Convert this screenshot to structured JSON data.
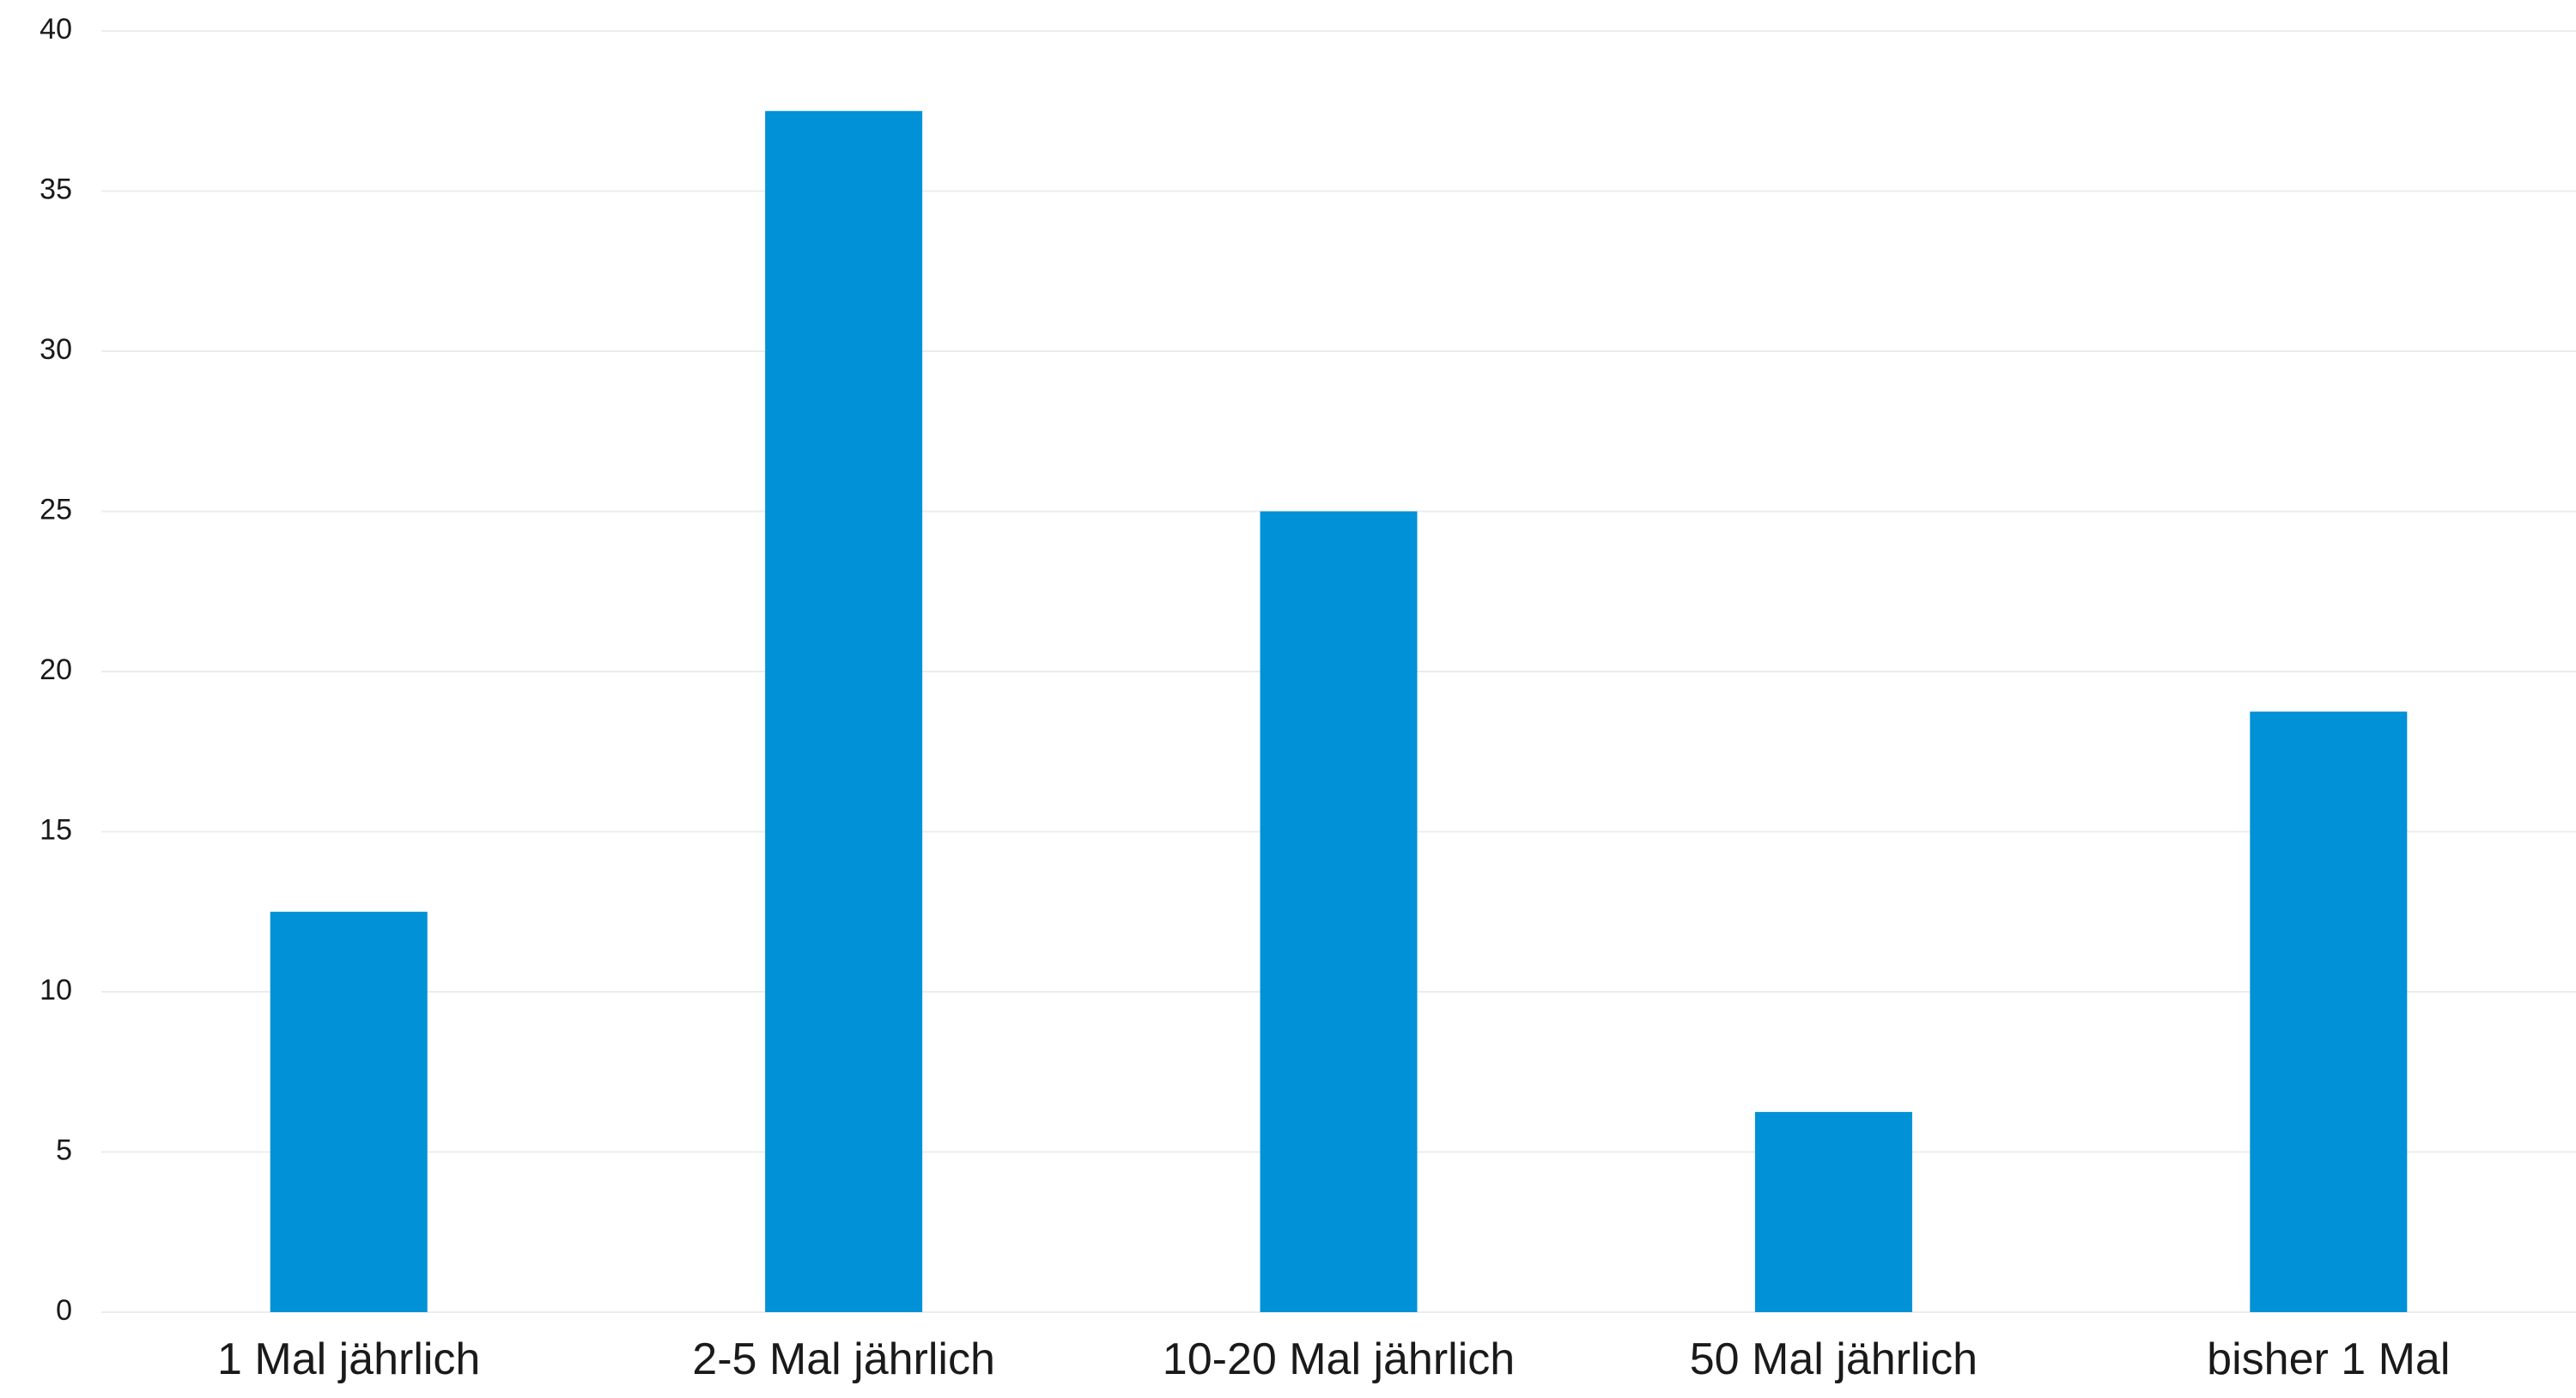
{
  "chart_data": {
    "type": "bar",
    "categories": [
      "1 Mal jährlich",
      "2-5 Mal jährlich",
      "10-20 Mal jährlich",
      "50 Mal jährlich",
      "bisher 1 Mal"
    ],
    "values": [
      12.5,
      37.5,
      25,
      6.25,
      18.75
    ],
    "title": "",
    "xlabel": "",
    "ylabel": "",
    "ylim": [
      0,
      40
    ],
    "yticks": [
      "0",
      "5",
      "10",
      "15",
      "20",
      "25",
      "30",
      "35",
      "40"
    ],
    "grid": true,
    "legend": "none",
    "bar_color": "#0091d6",
    "grid_color": "#ececec"
  }
}
